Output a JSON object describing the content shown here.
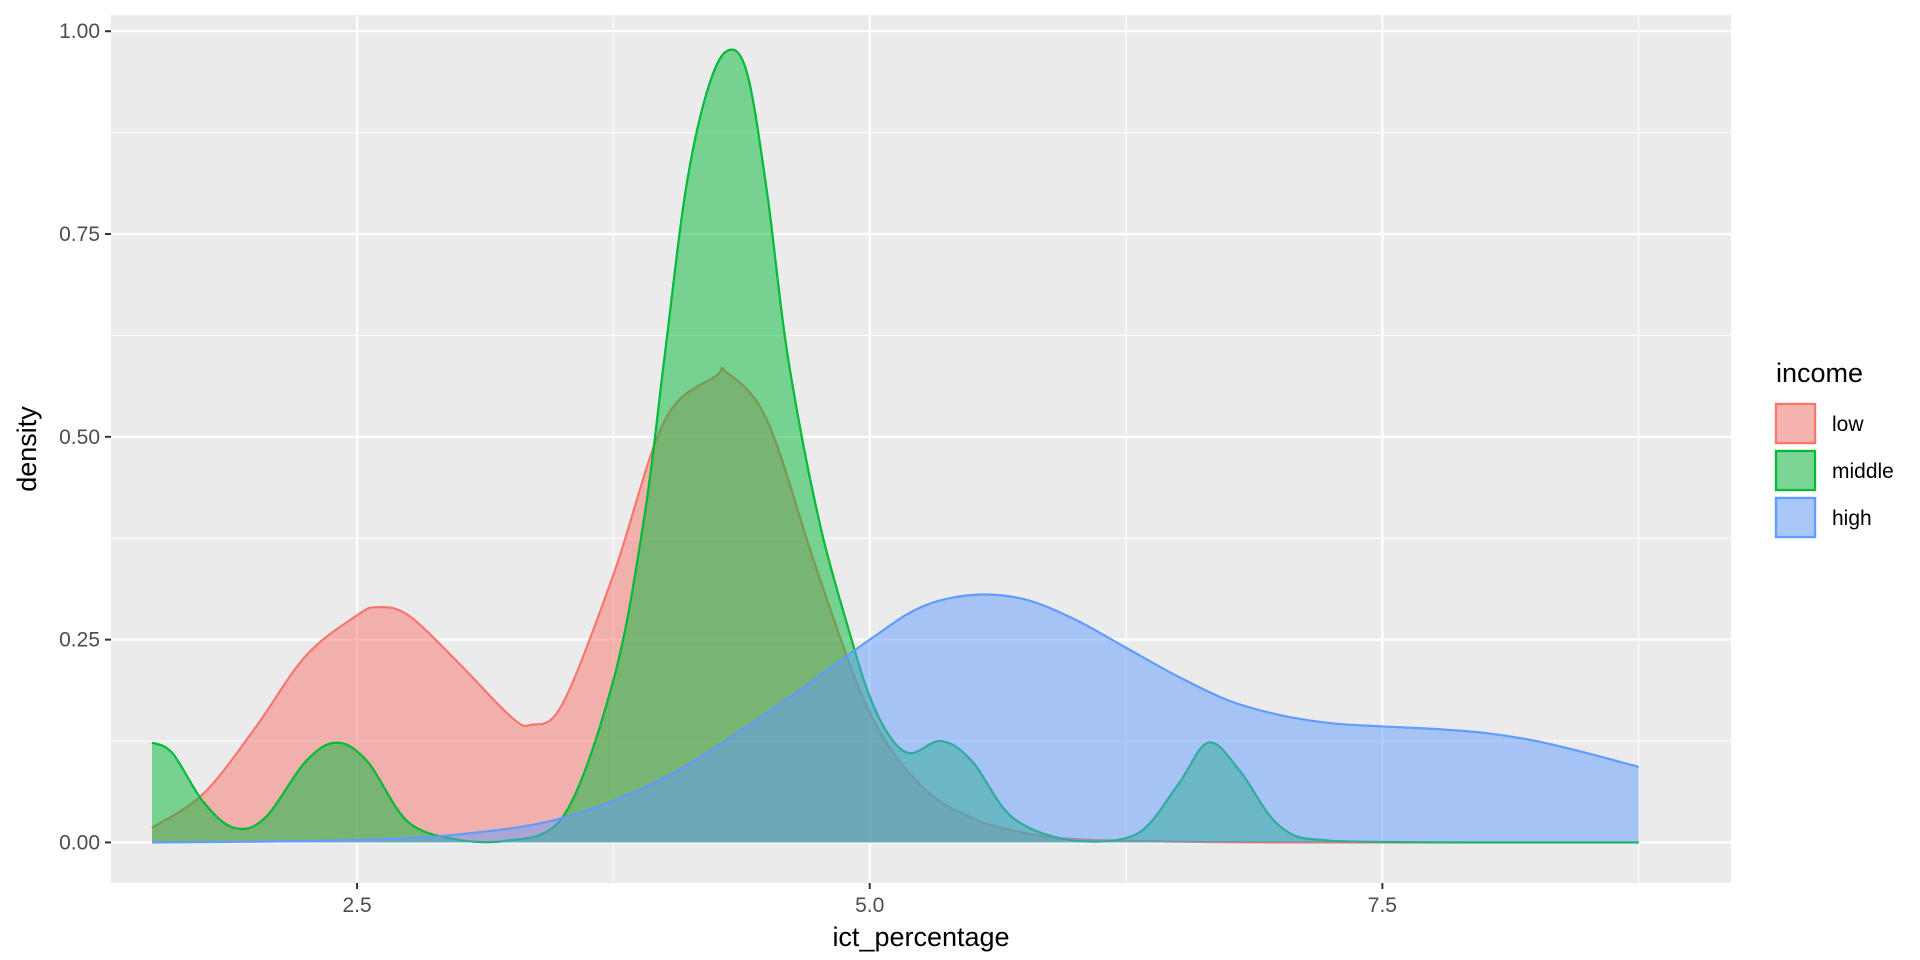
{
  "chart_data": {
    "type": "area",
    "chart_subtype": "density",
    "xlabel": "ict_percentage",
    "ylabel": "density",
    "xlim": [
      1.3,
      9.2
    ],
    "ylim": [
      -0.05,
      1.02
    ],
    "x_ticks": [
      2.5,
      5.0,
      7.5
    ],
    "x_tick_labels": [
      "2.5",
      "5.0",
      "7.5"
    ],
    "y_ticks": [
      0.0,
      0.25,
      0.5,
      0.75,
      1.0
    ],
    "y_tick_labels": [
      "0.00",
      "0.25",
      "0.50",
      "0.75",
      "1.00"
    ],
    "grid": true,
    "panel_background": "#ebebeb",
    "legend": {
      "title": "income",
      "placement": "right",
      "entries": [
        "low",
        "middle",
        "high"
      ]
    },
    "series": [
      {
        "name": "low",
        "color": "#f8766d",
        "x": [
          1.5,
          1.75,
          2.0,
          2.25,
          2.5,
          2.6,
          2.75,
          3.0,
          3.25,
          3.35,
          3.5,
          3.75,
          4.0,
          4.25,
          4.3,
          4.5,
          4.75,
          5.0,
          5.25,
          5.5,
          5.75,
          6.0,
          6.5,
          7.0,
          8.0,
          8.75
        ],
        "y": [
          0.018,
          0.06,
          0.14,
          0.23,
          0.28,
          0.29,
          0.28,
          0.22,
          0.155,
          0.145,
          0.17,
          0.33,
          0.52,
          0.575,
          0.58,
          0.52,
          0.33,
          0.16,
          0.07,
          0.03,
          0.012,
          0.004,
          0.001,
          0.0,
          0.0,
          0.0
        ]
      },
      {
        "name": "middle",
        "color": "#00ba38",
        "x": [
          1.5,
          1.6,
          1.75,
          1.9,
          2.05,
          2.25,
          2.4,
          2.55,
          2.75,
          3.0,
          3.2,
          3.5,
          3.75,
          3.9,
          4.0,
          4.1,
          4.2,
          4.3,
          4.4,
          4.5,
          4.6,
          4.75,
          4.9,
          5.0,
          5.1,
          5.2,
          5.35,
          5.5,
          5.7,
          6.0,
          6.3,
          6.5,
          6.65,
          6.8,
          7.0,
          7.25,
          8.0,
          8.75
        ],
        "y": [
          0.123,
          0.11,
          0.05,
          0.018,
          0.03,
          0.1,
          0.123,
          0.1,
          0.025,
          0.003,
          0.001,
          0.03,
          0.2,
          0.4,
          0.6,
          0.8,
          0.92,
          0.975,
          0.95,
          0.8,
          0.6,
          0.4,
          0.26,
          0.18,
          0.13,
          0.11,
          0.125,
          0.1,
          0.03,
          0.002,
          0.01,
          0.07,
          0.123,
          0.09,
          0.02,
          0.002,
          0.0,
          0.0
        ]
      },
      {
        "name": "high",
        "color": "#619cff",
        "x": [
          1.5,
          2.0,
          2.5,
          3.0,
          3.5,
          4.0,
          4.5,
          5.0,
          5.25,
          5.5,
          5.75,
          6.0,
          6.25,
          6.5,
          6.75,
          7.0,
          7.25,
          7.5,
          7.75,
          8.0,
          8.25,
          8.5,
          8.75
        ],
        "y": [
          0.0,
          0.001,
          0.003,
          0.01,
          0.03,
          0.08,
          0.16,
          0.25,
          0.29,
          0.305,
          0.3,
          0.275,
          0.24,
          0.205,
          0.175,
          0.157,
          0.147,
          0.143,
          0.14,
          0.135,
          0.125,
          0.11,
          0.093
        ]
      }
    ]
  }
}
